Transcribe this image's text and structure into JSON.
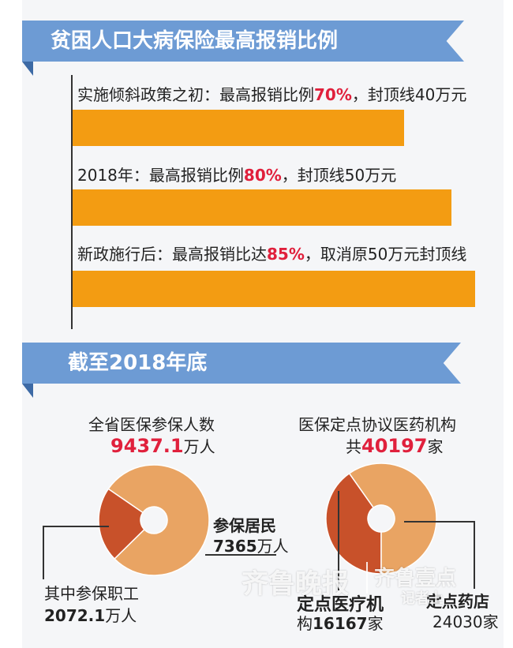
{
  "section1": {
    "title": "贫困人口大病保险最高报销比例",
    "stages": [
      {
        "prefix": "实施倾斜政策之初：最高报销比例",
        "pct": "70%",
        "suffix": "，封顶线40万元"
      },
      {
        "prefix": "2018年：最高报销比例",
        "pct": "80%",
        "suffix": "，封顶线50万元"
      },
      {
        "prefix": "新政施行后：最高报销比达",
        "pct": "85%",
        "suffix": "，取消原50万元封顶线"
      }
    ]
  },
  "section2": {
    "title": "截至2018年底"
  },
  "chart_data": [
    {
      "type": "bar",
      "categories": [
        "实施倾斜政策之初",
        "2018年",
        "新政施行后"
      ],
      "values": [
        70,
        80,
        85
      ],
      "unit": "%"
    },
    {
      "type": "pie",
      "title": "全省医保参保人数",
      "total_value": "9437.1",
      "total_unit": "万人",
      "slices": [
        {
          "name": "其中参保职工",
          "value_text": "2072.1",
          "unit": "万人",
          "value": 2072.1,
          "color": "#c8512a"
        },
        {
          "name": "参保居民",
          "value_text": "7365",
          "unit": "万人",
          "value": 7365,
          "color": "#e9a463"
        }
      ]
    },
    {
      "type": "pie",
      "title": "医保定点协议医药机构",
      "total_prefix": "共",
      "total_value": "40197",
      "total_unit": "家",
      "slices": [
        {
          "name": "定点医疗机",
          "name2": "构",
          "value_text": "16167",
          "unit": "家",
          "value": 16167,
          "color": "#c8512a"
        },
        {
          "name": "定点药店",
          "value_text": "24030",
          "unit": "家",
          "value": 24030,
          "color": "#e9a463"
        }
      ]
    }
  ],
  "colors": {
    "ribbon": "#6d9bd4",
    "bar": "#f39c12",
    "highlight": "#e0203c",
    "slice_dark": "#c8512a",
    "slice_light": "#e9a463"
  },
  "watermark": {
    "left": "齐鲁晚报",
    "right": "齐鲁壹点",
    "sub": "记者上"
  }
}
